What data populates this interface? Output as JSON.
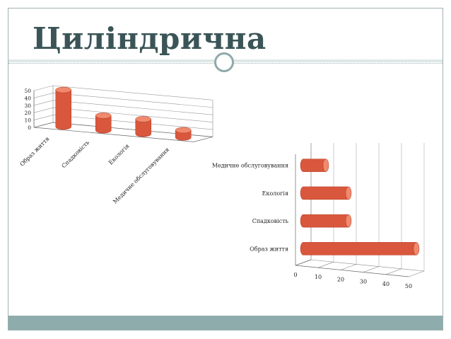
{
  "slide": {
    "title": "Циліндрична",
    "colors": {
      "title": "#3b5557",
      "accent": "#8eacab",
      "cylinder": "#d9573c",
      "cylinder_top": "#f08a6e"
    }
  },
  "chart_data": [
    {
      "type": "bar",
      "orientation": "vertical",
      "style": "3d-cylinder",
      "categories": [
        "Образ життя",
        "Спадковість",
        "Екологія",
        "Медичне обслуговування"
      ],
      "values": [
        50,
        20,
        20,
        10
      ],
      "ylim": [
        0,
        50
      ],
      "yticks": [
        "0",
        "10",
        "20",
        "30",
        "40",
        "50"
      ],
      "grid": true
    },
    {
      "type": "bar",
      "orientation": "horizontal",
      "style": "3d-cylinder",
      "categories": [
        "Образ життя",
        "Спадковість",
        "Екологія",
        "Медичне обслуговування"
      ],
      "values": [
        50,
        20,
        20,
        10
      ],
      "xlim": [
        0,
        50
      ],
      "xticks": [
        "0",
        "10",
        "20",
        "30",
        "40",
        "50"
      ],
      "grid": true
    }
  ]
}
